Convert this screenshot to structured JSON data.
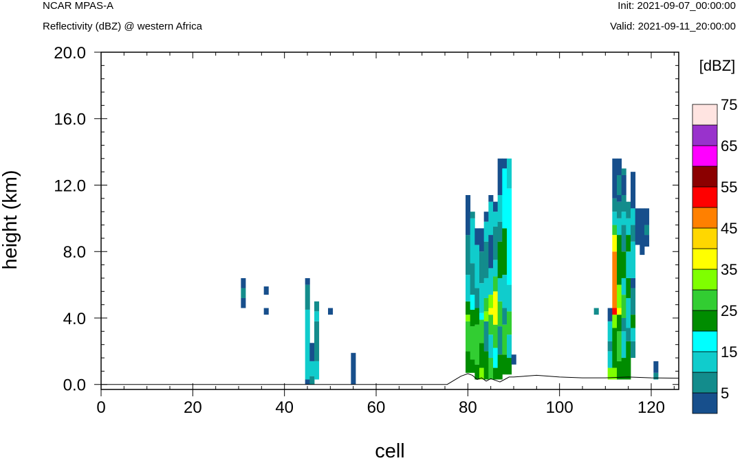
{
  "header": {
    "model": "NCAR MPAS-A",
    "field": "Reflectivity (dBZ) @ western Africa",
    "init": "Init: 2021-09-07_00:00:00",
    "valid": "Valid: 2021-09-11_20:00:00"
  },
  "chart_data": {
    "type": "heatmap",
    "xlabel": "cell",
    "ylabel": "height (km)",
    "xlim": [
      0,
      126
    ],
    "ylim": [
      -0.3,
      20
    ],
    "x_ticks": [
      "0",
      "20",
      "40",
      "60",
      "80",
      "100",
      "120"
    ],
    "y_ticks": [
      "0.0",
      "4.0",
      "8.0",
      "12.0",
      "16.0",
      "20.0"
    ],
    "colorbar": {
      "title": "[dBZ]",
      "levels": [
        0,
        5,
        10,
        15,
        20,
        25,
        30,
        35,
        40,
        45,
        50,
        55,
        60,
        65,
        70,
        75,
        80
      ],
      "tick_labels": [
        "5",
        "15",
        "25",
        "35",
        "45",
        "55",
        "65",
        "75"
      ],
      "colors": [
        "#ffffff",
        "#174f8c",
        "#138c8c",
        "#10cccc",
        "#00ffff",
        "#008c00",
        "#32cd32",
        "#7fff00",
        "#ffff00",
        "#ffd700",
        "#ff8000",
        "#ff0000",
        "#8b0000",
        "#ff00ff",
        "#9932cc",
        "#ffe4e1"
      ]
    },
    "terrain_km": [
      [
        0,
        0.0
      ],
      [
        75.5,
        0.0
      ],
      [
        77,
        0.25
      ],
      [
        78.5,
        0.5
      ],
      [
        80,
        0.65
      ],
      [
        81,
        0.55
      ],
      [
        82,
        0.3
      ],
      [
        83,
        0.4
      ],
      [
        84,
        0.2
      ],
      [
        85,
        0.35
      ],
      [
        86,
        0.25
      ],
      [
        87,
        0.15
      ],
      [
        88,
        0.3
      ],
      [
        89,
        0.45
      ],
      [
        90,
        0.45
      ],
      [
        95,
        0.55
      ],
      [
        100,
        0.45
      ],
      [
        105,
        0.4
      ],
      [
        110,
        0.4
      ],
      [
        115,
        0.45
      ],
      [
        120,
        0.4
      ],
      [
        126,
        0.38
      ]
    ],
    "columns": [
      {
        "x": 31,
        "cells": [
          [
            4.6,
            5.2,
            7
          ],
          [
            5.2,
            5.8,
            12
          ],
          [
            5.8,
            6.4,
            7
          ]
        ]
      },
      {
        "x": 36,
        "cells": [
          [
            4.2,
            4.6,
            7
          ],
          [
            5.4,
            5.9,
            7
          ]
        ]
      },
      {
        "x": 45,
        "cells": [
          [
            0,
            0.3,
            7
          ],
          [
            0.3,
            4.5,
            17
          ],
          [
            4.5,
            6.0,
            12
          ],
          [
            6.0,
            6.4,
            7
          ]
        ]
      },
      {
        "x": 46,
        "cells": [
          [
            0,
            0.5,
            12
          ],
          [
            0.5,
            1.4,
            17
          ],
          [
            1.4,
            2.5,
            7
          ]
        ]
      },
      {
        "x": 47,
        "cells": [
          [
            0.3,
            1.4,
            17
          ],
          [
            1.4,
            3.8,
            12
          ],
          [
            3.8,
            4.4,
            17
          ],
          [
            4.4,
            5.0,
            12
          ]
        ]
      },
      {
        "x": 50,
        "cells": [
          [
            4.2,
            4.6,
            7
          ]
        ]
      },
      {
        "x": 55,
        "cells": [
          [
            0,
            1.9,
            7
          ]
        ]
      },
      {
        "x": 80,
        "cells": [
          [
            0.7,
            2.0,
            27
          ],
          [
            2.0,
            3.8,
            32
          ],
          [
            3.8,
            4.2,
            37
          ],
          [
            4.2,
            5.0,
            27
          ],
          [
            5.0,
            6.6,
            17
          ],
          [
            6.6,
            9.0,
            12
          ],
          [
            9.0,
            11.4,
            7
          ]
        ]
      },
      {
        "x": 81,
        "cells": [
          [
            0.7,
            1.5,
            27
          ],
          [
            1.5,
            3.5,
            32
          ],
          [
            3.5,
            4.5,
            27
          ],
          [
            4.5,
            5.4,
            22
          ],
          [
            5.4,
            7.3,
            12
          ],
          [
            7.3,
            10.0,
            17
          ],
          [
            10.0,
            10.4,
            12
          ]
        ]
      },
      {
        "x": 82,
        "cells": [
          [
            0.3,
            1.2,
            27
          ],
          [
            1.2,
            3.6,
            32
          ],
          [
            3.6,
            4.6,
            27
          ],
          [
            4.6,
            5.8,
            12
          ],
          [
            5.8,
            8.4,
            17
          ],
          [
            8.4,
            9.4,
            7
          ]
        ]
      },
      {
        "x": 83,
        "cells": [
          [
            0.3,
            1.0,
            37
          ],
          [
            1.0,
            2.5,
            27
          ],
          [
            2.5,
            3.9,
            32
          ],
          [
            3.9,
            4.3,
            22
          ],
          [
            4.3,
            6.1,
            17
          ],
          [
            6.1,
            8.0,
            12
          ],
          [
            8.0,
            9.4,
            7
          ]
        ]
      },
      {
        "x": 84,
        "cells": [
          [
            0.3,
            2.0,
            27
          ],
          [
            2.0,
            3.8,
            12
          ],
          [
            3.8,
            4.4,
            37
          ],
          [
            4.4,
            5.2,
            32
          ],
          [
            5.2,
            6.4,
            17
          ],
          [
            6.4,
            8.6,
            12
          ],
          [
            8.6,
            9.8,
            17
          ],
          [
            9.8,
            10.4,
            7
          ]
        ]
      },
      {
        "x": 85,
        "cells": [
          [
            0.3,
            1.6,
            32
          ],
          [
            1.6,
            3.0,
            17
          ],
          [
            3.0,
            4.2,
            32
          ],
          [
            4.2,
            4.6,
            42
          ],
          [
            4.6,
            5.4,
            37
          ],
          [
            5.4,
            7.0,
            17
          ],
          [
            7.0,
            9.0,
            7
          ],
          [
            9.0,
            11.0,
            17
          ],
          [
            11.0,
            11.4,
            7
          ]
        ]
      },
      {
        "x": 86,
        "cells": [
          [
            0.3,
            1.0,
            27
          ],
          [
            1.0,
            2.2,
            22
          ],
          [
            2.2,
            3.6,
            32
          ],
          [
            3.6,
            5.6,
            42
          ],
          [
            5.6,
            6.5,
            32
          ],
          [
            6.5,
            7.5,
            17
          ],
          [
            7.5,
            9.5,
            12
          ],
          [
            9.5,
            10.4,
            17
          ],
          [
            10.4,
            11.0,
            7
          ]
        ]
      },
      {
        "x": 87,
        "cells": [
          [
            0.3,
            1.8,
            27
          ],
          [
            1.8,
            3.5,
            12
          ],
          [
            3.5,
            5.0,
            32
          ],
          [
            5.0,
            6.4,
            17
          ],
          [
            6.4,
            8.6,
            27
          ],
          [
            8.6,
            9.8,
            12
          ],
          [
            9.8,
            11.4,
            17
          ],
          [
            11.4,
            13.6,
            7
          ]
        ]
      },
      {
        "x": 88,
        "cells": [
          [
            0.6,
            1.8,
            27
          ],
          [
            1.8,
            3.6,
            32
          ],
          [
            3.6,
            4.6,
            12
          ],
          [
            4.6,
            6.6,
            17
          ],
          [
            6.6,
            9.4,
            27
          ],
          [
            9.4,
            13.0,
            22
          ],
          [
            13.0,
            13.6,
            7
          ]
        ]
      },
      {
        "x": 89,
        "cells": [
          [
            0.6,
            1.6,
            27
          ],
          [
            1.6,
            3.0,
            17
          ],
          [
            3.0,
            4.4,
            32
          ],
          [
            4.4,
            6.0,
            17
          ],
          [
            6.0,
            11.8,
            22
          ],
          [
            11.8,
            13.6,
            17
          ]
        ]
      },
      {
        "x": 90,
        "cells": [
          [
            1.2,
            1.8,
            7
          ]
        ]
      },
      {
        "x": 108,
        "cells": [
          [
            4.2,
            4.6,
            12
          ]
        ]
      },
      {
        "x": 111,
        "cells": [
          [
            0.3,
            1.0,
            37
          ],
          [
            1.0,
            2.0,
            17
          ],
          [
            2.0,
            2.6,
            12
          ],
          [
            2.6,
            3.8,
            17
          ],
          [
            3.8,
            4.6,
            7
          ]
        ]
      },
      {
        "x": 112,
        "cells": [
          [
            0.3,
            1.0,
            37
          ],
          [
            1.0,
            3.4,
            27
          ],
          [
            3.4,
            4.2,
            37
          ],
          [
            4.2,
            4.6,
            57
          ],
          [
            4.6,
            8.0,
            52
          ],
          [
            8.0,
            9.0,
            42
          ],
          [
            9.0,
            9.6,
            32
          ],
          [
            9.6,
            10.4,
            17
          ],
          [
            10.4,
            11.2,
            12
          ],
          [
            11.2,
            13.6,
            7
          ]
        ]
      },
      {
        "x": 113,
        "cells": [
          [
            0.3,
            1.4,
            27
          ],
          [
            1.4,
            3.2,
            32
          ],
          [
            3.2,
            4.2,
            27
          ],
          [
            4.2,
            4.6,
            42
          ],
          [
            4.6,
            6.0,
            37
          ],
          [
            6.0,
            9.0,
            27
          ],
          [
            9.0,
            10.0,
            17
          ],
          [
            10.0,
            11.0,
            12
          ],
          [
            11.0,
            11.4,
            7
          ],
          [
            11.4,
            12.6,
            12
          ],
          [
            12.6,
            13.6,
            7
          ]
        ]
      },
      {
        "x": 114,
        "cells": [
          [
            0.3,
            1.6,
            27
          ],
          [
            1.6,
            3.2,
            17
          ],
          [
            3.2,
            4.0,
            12
          ],
          [
            4.0,
            5.4,
            32
          ],
          [
            5.4,
            6.4,
            17
          ],
          [
            6.4,
            8.0,
            27
          ],
          [
            8.0,
            9.6,
            12
          ],
          [
            9.6,
            10.4,
            17
          ],
          [
            10.4,
            11.4,
            12
          ],
          [
            11.4,
            12.6,
            7
          ],
          [
            12.6,
            13.0,
            12
          ]
        ]
      },
      {
        "x": 115,
        "cells": [
          [
            0.3,
            2.6,
            27
          ],
          [
            2.6,
            3.4,
            12
          ],
          [
            3.4,
            5.2,
            17
          ],
          [
            5.2,
            6.4,
            27
          ],
          [
            6.4,
            8.0,
            17
          ],
          [
            8.0,
            9.0,
            27
          ],
          [
            9.0,
            10.0,
            17
          ],
          [
            10.0,
            11.0,
            12
          ]
        ]
      },
      {
        "x": 116,
        "cells": [
          [
            1.6,
            2.6,
            12
          ],
          [
            2.6,
            3.4,
            17
          ],
          [
            3.4,
            4.2,
            27
          ],
          [
            4.2,
            5.8,
            12
          ],
          [
            5.8,
            6.4,
            7
          ],
          [
            6.4,
            8.6,
            17
          ],
          [
            8.6,
            9.6,
            12
          ],
          [
            9.6,
            10.6,
            17
          ],
          [
            10.6,
            12.8,
            7
          ]
        ]
      },
      {
        "x": 117,
        "cells": [
          [
            8.4,
            10.6,
            7
          ]
        ]
      },
      {
        "x": 118,
        "cells": [
          [
            7.8,
            10.6,
            7
          ]
        ]
      },
      {
        "x": 119,
        "cells": [
          [
            8.3,
            9.0,
            7
          ],
          [
            9.0,
            9.6,
            12
          ],
          [
            9.6,
            10.6,
            7
          ]
        ]
      },
      {
        "x": 121,
        "cells": [
          [
            0.3,
            0.7,
            12
          ],
          [
            0.7,
            1.4,
            7
          ]
        ]
      }
    ]
  }
}
